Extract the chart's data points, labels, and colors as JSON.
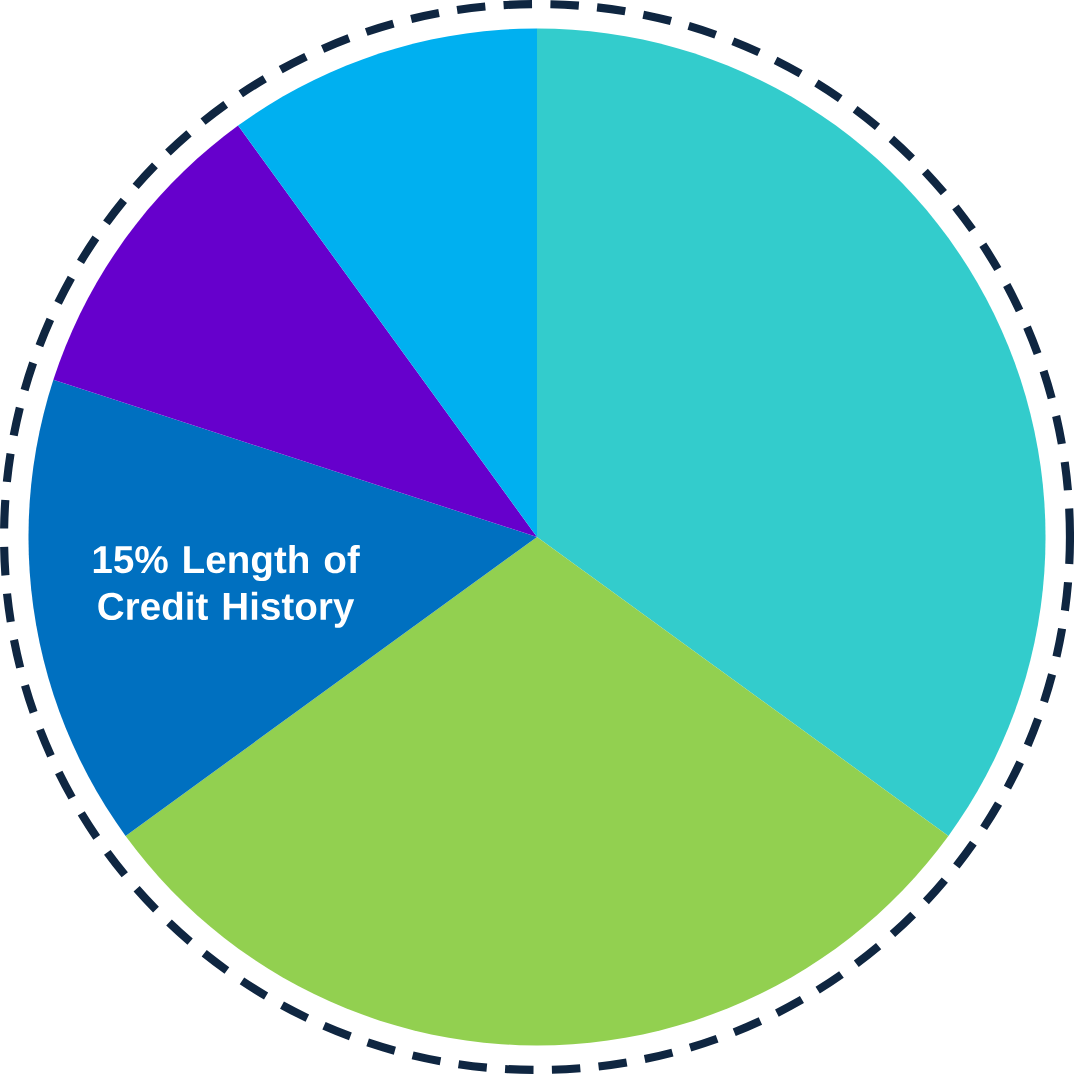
{
  "chart_data": {
    "type": "pie",
    "categories": [
      null,
      null,
      "15% Length of Credit History",
      null,
      null
    ],
    "values": [
      35,
      30,
      15,
      10,
      10
    ],
    "colors": [
      "#33cccc",
      "#92d050",
      "#0070c0",
      "#6600cc",
      "#00b0f0"
    ]
  }
}
